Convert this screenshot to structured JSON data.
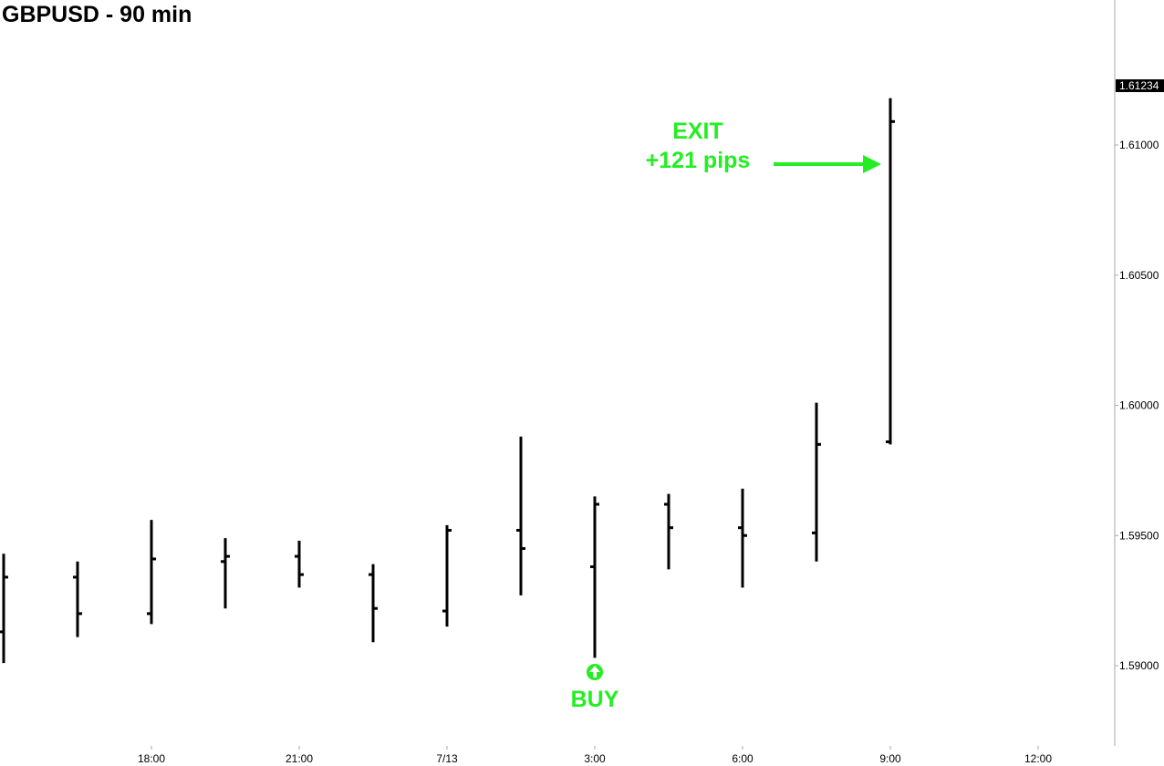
{
  "page_title": "GBPUSD - 90 min",
  "colors": {
    "bars": "#000000",
    "annotation": "#22ee22",
    "last_price_bg": "#000000",
    "last_price_text": "#ffffff",
    "axis_line": "#aaaaaa"
  },
  "annotations": {
    "exit_line1": "EXIT",
    "exit_line2": "+121 pips",
    "buy_label": "BUY",
    "buy_icon": "up-arrow-circle-icon",
    "exit_icon": "right-arrow-icon"
  },
  "chart_data": {
    "type": "ohlc",
    "title": "GBPUSD - 90 min",
    "xlabel": "",
    "ylabel": "",
    "interval": "90 min",
    "ylim": [
      1.5875,
      1.6135
    ],
    "y_ticks": [
      "1.59000",
      "1.59500",
      "1.60000",
      "1.60500",
      "1.61000"
    ],
    "x_ticks": [
      "18:00",
      "21:00",
      "7/13",
      "3:00",
      "6:00",
      "9:00",
      "12:00"
    ],
    "x_tick_times": [
      "2011-07-12 18:00",
      "2011-07-12 21:00",
      "2011-07-13 00:00",
      "2011-07-13 03:00",
      "2011-07-13 06:00",
      "2011-07-13 09:00",
      "2011-07-13 12:00"
    ],
    "last_price": "1.61234",
    "bars": [
      {
        "time": "2011-07-12 15:00",
        "open": 1.5913,
        "high": 1.5943,
        "low": 1.5901,
        "close": 1.5934
      },
      {
        "time": "2011-07-12 16:30",
        "open": 1.5934,
        "high": 1.594,
        "low": 1.5911,
        "close": 1.592
      },
      {
        "time": "2011-07-12 18:00",
        "open": 1.592,
        "high": 1.5956,
        "low": 1.5916,
        "close": 1.5941
      },
      {
        "time": "2011-07-12 19:30",
        "open": 1.594,
        "high": 1.5949,
        "low": 1.5922,
        "close": 1.5942
      },
      {
        "time": "2011-07-12 21:00",
        "open": 1.5942,
        "high": 1.5948,
        "low": 1.593,
        "close": 1.5935
      },
      {
        "time": "2011-07-12 22:30",
        "open": 1.5935,
        "high": 1.5939,
        "low": 1.5909,
        "close": 1.5922
      },
      {
        "time": "2011-07-13 00:00",
        "open": 1.5921,
        "high": 1.5954,
        "low": 1.5915,
        "close": 1.5952
      },
      {
        "time": "2011-07-13 01:30",
        "open": 1.5952,
        "high": 1.5988,
        "low": 1.5927,
        "close": 1.5945
      },
      {
        "time": "2011-07-13 03:00",
        "open": 1.5938,
        "high": 1.5965,
        "low": 1.5903,
        "close": 1.5962
      },
      {
        "time": "2011-07-13 04:30",
        "open": 1.5962,
        "high": 1.5966,
        "low": 1.5937,
        "close": 1.5953
      },
      {
        "time": "2011-07-13 06:00",
        "open": 1.5953,
        "high": 1.5968,
        "low": 1.593,
        "close": 1.595
      },
      {
        "time": "2011-07-13 07:30",
        "open": 1.5951,
        "high": 1.6001,
        "low": 1.594,
        "close": 1.5985
      },
      {
        "time": "2011-07-13 09:00",
        "open": 1.5986,
        "high": 1.6118,
        "low": 1.5985,
        "close": 1.6109
      }
    ],
    "grid": false
  }
}
